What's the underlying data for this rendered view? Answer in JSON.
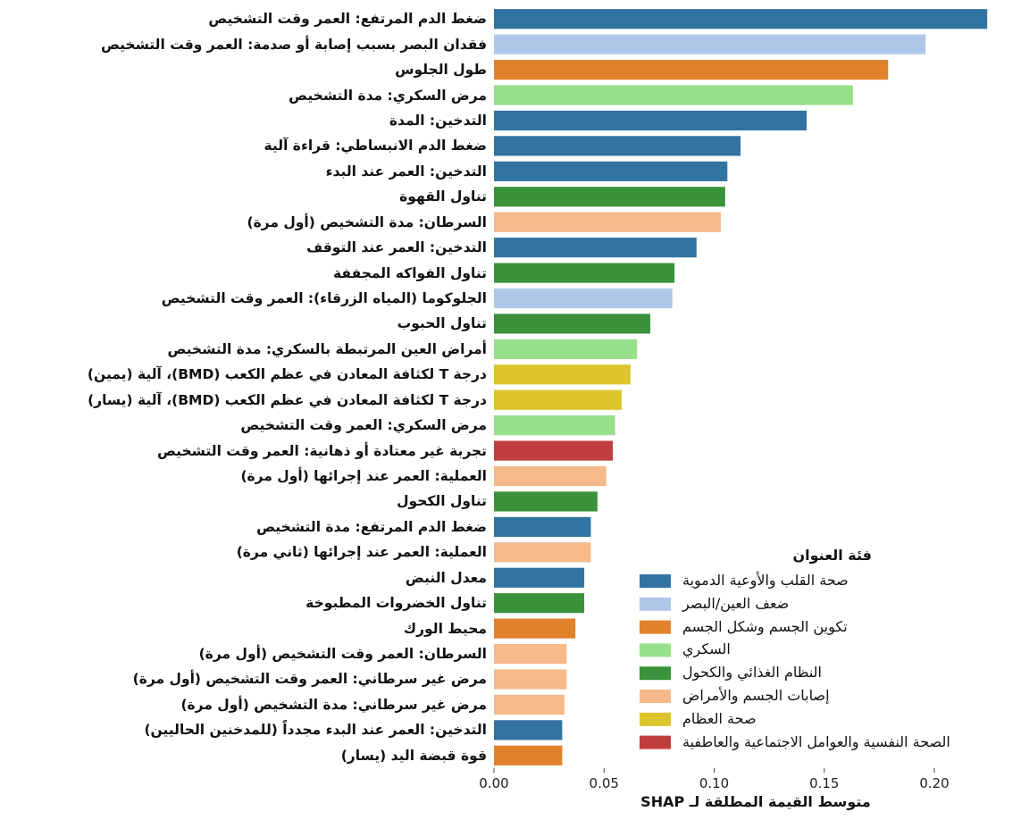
{
  "chart_data": {
    "type": "bar",
    "orientation": "horizontal",
    "categories": [
      "ضغط الدم المرتفع: العمر وقت التشخيص",
      "فقدان البصر بسبب إصابة أو صدمة: العمر وقت التشخيص",
      "طول الجلوس",
      "مرض السكري: مدة التشخيص",
      "التدخين: المدة",
      "ضغط الدم الانبساطي: قراءة آلية",
      "التدخين: العمر عند البدء",
      "تناول القهوة",
      "السرطان: مدة التشخيص (أول مرة)",
      "التدخين: العمر عند التوقف",
      "تناول الفواكه المجففة",
      "الجلوكوما (المياه الزرقاء): العمر وقت التشخيص",
      "تناول الحبوب",
      "أمراض العين المرتبطة بالسكري: مدة التشخيص",
      "درجة T لكثافة المعادن في عظم الكعب (BMD)، آلية (يمين)",
      "درجة T لكثافة المعادن في عظم الكعب (BMD)، آلية (يسار)",
      "مرض السكري: العمر وقت التشخيص",
      "تجربة غير معتادة أو ذهانية: العمر وقت التشخيص",
      "العملية: العمر عند إجرائها (أول مرة)",
      "تناول الكحول",
      "ضغط الدم المرتفع: مدة التشخيص",
      "العملية: العمر عند إجرائها (ثاني مرة)",
      "معدل النبض",
      "تناول الخضروات المطبوخة",
      "محيط الورك",
      "السرطان: العمر وقت التشخيص (أول مرة)",
      "مرض غير سرطاني: العمر وقت التشخيص (أول مرة)",
      "مرض غير سرطاني: مدة التشخيص (أول مرة)",
      "التدخين: العمر عند البدء مجدداً (للمدخنين الحاليين)",
      "قوة قبضة اليد (يسار)"
    ],
    "series": [
      {
        "name": "صحة القلب والأوعية الدموية",
        "color": "#3274a1",
        "values": [
          0.224,
          null,
          null,
          null,
          0.142,
          0.112,
          0.106,
          null,
          null,
          0.092,
          null,
          null,
          null,
          null,
          null,
          null,
          null,
          null,
          null,
          null,
          0.044,
          null,
          0.041,
          null,
          null,
          null,
          null,
          null,
          0.031,
          null
        ]
      },
      {
        "name": "ضعف العين/البصر",
        "color": "#aec7e8",
        "values": [
          null,
          0.196,
          null,
          null,
          null,
          null,
          null,
          null,
          null,
          null,
          null,
          0.081,
          null,
          null,
          null,
          null,
          null,
          null,
          null,
          null,
          null,
          null,
          null,
          null,
          null,
          null,
          null,
          null,
          null,
          null
        ]
      },
      {
        "name": "تكوين الجسم وشكل الجسم",
        "color": "#e1812c",
        "values": [
          null,
          null,
          0.179,
          null,
          null,
          null,
          null,
          null,
          null,
          null,
          null,
          null,
          null,
          null,
          null,
          null,
          null,
          null,
          null,
          null,
          null,
          null,
          null,
          null,
          0.037,
          null,
          null,
          null,
          null,
          0.031
        ]
      },
      {
        "name": "السكري",
        "color": "#98df8a",
        "values": [
          null,
          null,
          null,
          0.163,
          null,
          null,
          null,
          null,
          null,
          null,
          null,
          null,
          null,
          0.065,
          null,
          null,
          0.055,
          null,
          null,
          null,
          null,
          null,
          null,
          null,
          null,
          null,
          null,
          null,
          null,
          null
        ]
      },
      {
        "name": "النظام الغذائي والكحول",
        "color": "#3a923a",
        "values": [
          null,
          null,
          null,
          null,
          null,
          null,
          null,
          0.105,
          null,
          null,
          0.082,
          null,
          0.071,
          null,
          null,
          null,
          null,
          null,
          null,
          0.047,
          null,
          null,
          null,
          0.041,
          null,
          null,
          null,
          null,
          null,
          null
        ]
      },
      {
        "name": "إصابات الجسم والأمراض",
        "color": "#f5b98a",
        "values": [
          null,
          null,
          null,
          null,
          null,
          null,
          null,
          null,
          0.103,
          null,
          null,
          null,
          null,
          null,
          null,
          null,
          null,
          null,
          0.051,
          null,
          null,
          0.044,
          null,
          null,
          null,
          0.033,
          0.033,
          0.032,
          null,
          null
        ]
      },
      {
        "name": "صحة العظام",
        "color": "#dbc42c",
        "values": [
          null,
          null,
          null,
          null,
          null,
          null,
          null,
          null,
          null,
          null,
          null,
          null,
          null,
          null,
          0.062,
          0.058,
          null,
          null,
          null,
          null,
          null,
          null,
          null,
          null,
          null,
          null,
          null,
          null,
          null,
          null
        ]
      },
      {
        "name": "الصحة النفسية والعوامل الاجتماعية والعاطفية",
        "color": "#c03d3e",
        "values": [
          null,
          null,
          null,
          null,
          null,
          null,
          null,
          null,
          null,
          null,
          null,
          null,
          null,
          null,
          null,
          null,
          null,
          0.054,
          null,
          null,
          null,
          null,
          null,
          null,
          null,
          null,
          null,
          null,
          null,
          null
        ]
      }
    ],
    "legend_title": "فئة العنوان",
    "x_label": "متوسط القيمة المطلقة لـ SHAP",
    "xlim": [
      0,
      0.23
    ],
    "xticks": [
      {
        "value": 0,
        "label": "0.00"
      },
      0.05,
      {
        "value": 0.1,
        "label": "0.10"
      },
      0.15,
      {
        "value": 0.2,
        "label": "0.20"
      }
    ],
    "legend_position": "lower right"
  }
}
